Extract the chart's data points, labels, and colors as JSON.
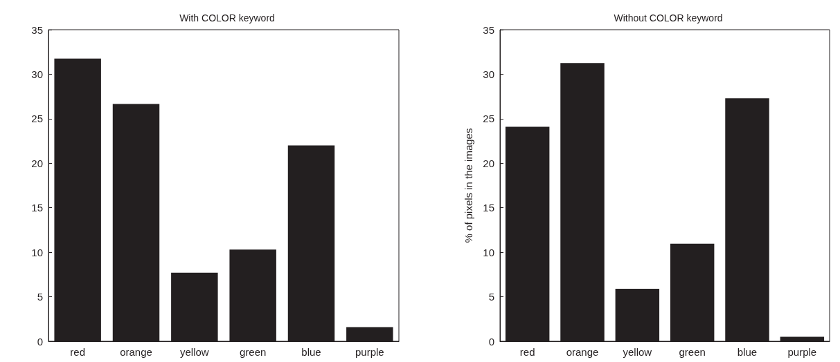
{
  "chart_data": [
    {
      "type": "bar",
      "title": "With COLOR keyword",
      "categories": [
        "red",
        "orange",
        "yellow",
        "green",
        "blue",
        "purple"
      ],
      "values": [
        31.76,
        26.65,
        7.7,
        10.3,
        22.0,
        1.6
      ],
      "color": "#231f20",
      "ylim": [
        0,
        35
      ],
      "yticks": [
        0,
        5,
        10,
        15,
        20,
        25,
        30,
        35
      ],
      "grid": false
    },
    {
      "type": "bar",
      "title": "Without COLOR keyword",
      "ylabel": "% of pixels in the images",
      "categories": [
        "red",
        "orange",
        "yellow",
        "green",
        "blue",
        "purple"
      ],
      "values": [
        24.1,
        31.25,
        5.9,
        10.96,
        27.3,
        0.5
      ],
      "color": "#231f20",
      "ylim": [
        0,
        35
      ],
      "yticks": [
        0,
        5,
        10,
        15,
        20,
        25,
        30,
        35
      ],
      "grid": false
    }
  ]
}
